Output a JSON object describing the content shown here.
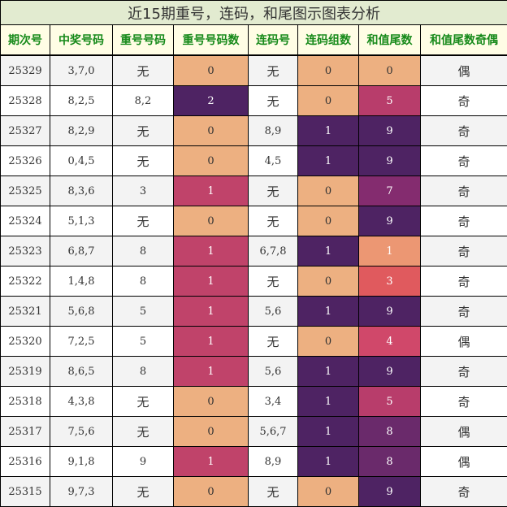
{
  "title": "近15期重号，连码，和尾图示图表分析",
  "headers": [
    "期次号",
    "中奖号码",
    "重号号码",
    "重号号码数",
    "连码号",
    "连码组数",
    "和值尾数",
    "和值尾数奇偶"
  ],
  "colors": {
    "heat_0": "#edb081",
    "repeat_1": "#c0436a",
    "purple_dark": "#4e2363",
    "tail_1": "#ec9773",
    "tail_3": "#e05a5e",
    "tail_4": "#d0486a",
    "tail_5": "#b83d6b",
    "tail_7": "#842c6f",
    "tail_8": "#6a2a6b",
    "tail_9": "#4e2363"
  },
  "rows": [
    {
      "issue": "25329",
      "numbers": "3,7,0",
      "repeat": "无",
      "repeat_count": "0",
      "consec": "无",
      "consec_groups": "0",
      "sum_tail": "0",
      "parity": "偶"
    },
    {
      "issue": "25328",
      "numbers": "8,2,5",
      "repeat": "8,2",
      "repeat_count": "2",
      "consec": "无",
      "consec_groups": "0",
      "sum_tail": "5",
      "parity": "奇"
    },
    {
      "issue": "25327",
      "numbers": "8,2,9",
      "repeat": "无",
      "repeat_count": "0",
      "consec": "8,9",
      "consec_groups": "1",
      "sum_tail": "9",
      "parity": "奇"
    },
    {
      "issue": "25326",
      "numbers": "0,4,5",
      "repeat": "无",
      "repeat_count": "0",
      "consec": "4,5",
      "consec_groups": "1",
      "sum_tail": "9",
      "parity": "奇"
    },
    {
      "issue": "25325",
      "numbers": "8,3,6",
      "repeat": "3",
      "repeat_count": "1",
      "consec": "无",
      "consec_groups": "0",
      "sum_tail": "7",
      "parity": "奇"
    },
    {
      "issue": "25324",
      "numbers": "5,1,3",
      "repeat": "无",
      "repeat_count": "0",
      "consec": "无",
      "consec_groups": "0",
      "sum_tail": "9",
      "parity": "奇"
    },
    {
      "issue": "25323",
      "numbers": "6,8,7",
      "repeat": "8",
      "repeat_count": "1",
      "consec": "6,7,8",
      "consec_groups": "1",
      "sum_tail": "1",
      "parity": "奇"
    },
    {
      "issue": "25322",
      "numbers": "1,4,8",
      "repeat": "8",
      "repeat_count": "1",
      "consec": "无",
      "consec_groups": "0",
      "sum_tail": "3",
      "parity": "奇"
    },
    {
      "issue": "25321",
      "numbers": "5,6,8",
      "repeat": "5",
      "repeat_count": "1",
      "consec": "5,6",
      "consec_groups": "1",
      "sum_tail": "9",
      "parity": "奇"
    },
    {
      "issue": "25320",
      "numbers": "7,2,5",
      "repeat": "5",
      "repeat_count": "1",
      "consec": "无",
      "consec_groups": "0",
      "sum_tail": "4",
      "parity": "偶"
    },
    {
      "issue": "25319",
      "numbers": "8,6,5",
      "repeat": "8",
      "repeat_count": "1",
      "consec": "5,6",
      "consec_groups": "1",
      "sum_tail": "9",
      "parity": "奇"
    },
    {
      "issue": "25318",
      "numbers": "4,3,8",
      "repeat": "无",
      "repeat_count": "0",
      "consec": "3,4",
      "consec_groups": "1",
      "sum_tail": "5",
      "parity": "奇"
    },
    {
      "issue": "25317",
      "numbers": "7,5,6",
      "repeat": "无",
      "repeat_count": "0",
      "consec": "5,6,7",
      "consec_groups": "1",
      "sum_tail": "8",
      "parity": "偶"
    },
    {
      "issue": "25316",
      "numbers": "9,1,8",
      "repeat": "9",
      "repeat_count": "1",
      "consec": "8,9",
      "consec_groups": "1",
      "sum_tail": "8",
      "parity": "偶"
    },
    {
      "issue": "25315",
      "numbers": "9,7,3",
      "repeat": "无",
      "repeat_count": "0",
      "consec": "无",
      "consec_groups": "0",
      "sum_tail": "9",
      "parity": "奇"
    }
  ]
}
